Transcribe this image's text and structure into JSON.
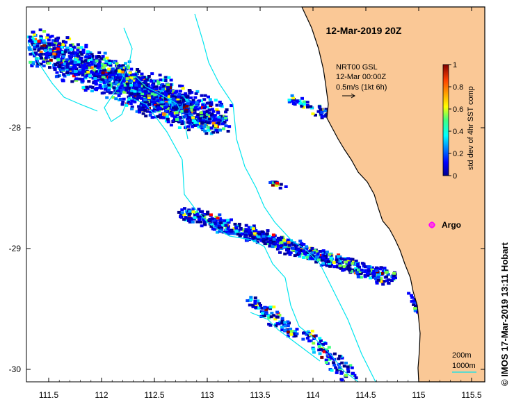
{
  "title": "12-Mar-2019 20Z",
  "legend": {
    "line1": "NRT00 GSL",
    "line2": "12-Mar 00:00Z",
    "line3": "0.5m/s (1kt 6h)"
  },
  "colorbar": {
    "label": "std dev of 4hr SST comp",
    "ticks": [
      "0",
      "0.2",
      "0.4",
      "0.6",
      "0.8",
      "1"
    ]
  },
  "argo": {
    "label": "Argo",
    "color": "#ff00ff"
  },
  "depth_legend": {
    "line1": "200m",
    "line2": "1000m"
  },
  "credit": "© IMOS 17-Mar-2019 13:11 Hobart",
  "axes": {
    "x_ticks": [
      "111.5",
      "112",
      "112.5",
      "113",
      "113.5",
      "114",
      "114.5",
      "115",
      "115.5"
    ],
    "y_ticks": [
      "-28",
      "-29",
      "-30"
    ]
  },
  "colors": {
    "land": "#fac896",
    "contour": "#00e5ee",
    "ocean": "#ffffff",
    "coast": "#000000"
  }
}
